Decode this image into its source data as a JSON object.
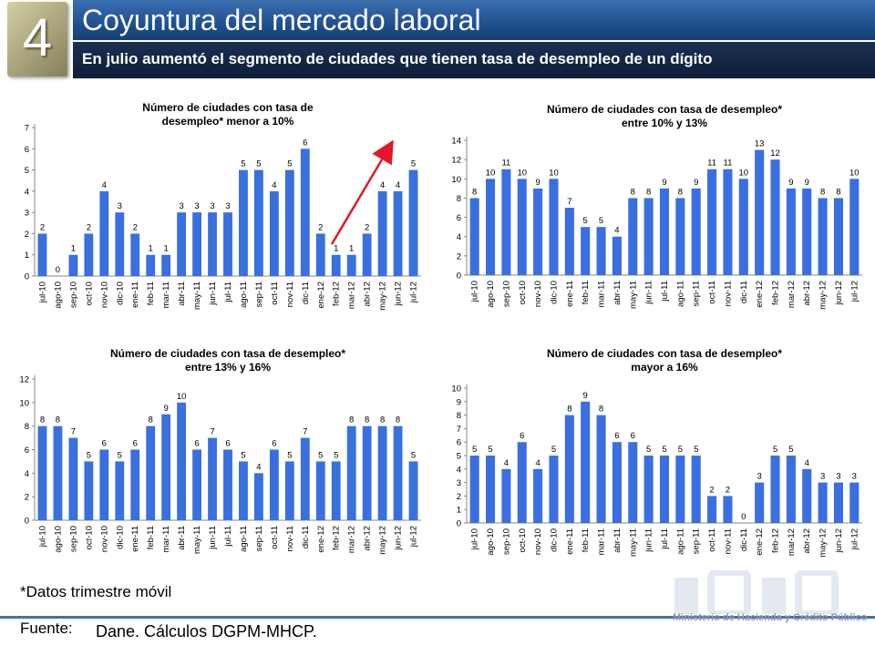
{
  "header": {
    "slide_number": "4",
    "title": "Coyuntura del mercado laboral",
    "subtitle": "En julio aumentó el segmento de ciudades que tienen tasa de desempleo de un dígito"
  },
  "footer": {
    "note": "*Datos trimestre móvil",
    "source_label": "Fuente:",
    "source_text": "Dane. Cálculos DGPM-MHCP.",
    "ministry": "Ministerio de Hacienda y Crédito Público"
  },
  "colors": {
    "bar": "#3a6fe0",
    "arrow": "#e0182a",
    "title_bar": "#20508f"
  },
  "chart_data": [
    {
      "type": "bar",
      "title_lines": [
        "Número de ciudades con tasa de",
        "desempleo* menor a 10%"
      ],
      "categories": [
        "jul-10",
        "ago-10",
        "sep-10",
        "oct-10",
        "nov-10",
        "dic-10",
        "ene-11",
        "feb-11",
        "mar-11",
        "abr-11",
        "may-11",
        "jun-11",
        "jul-11",
        "ago-11",
        "sep-11",
        "oct-11",
        "nov-11",
        "dic-11",
        "ene-12",
        "feb-12",
        "mar-12",
        "abr-12",
        "may-12",
        "jun-12",
        "jul-12"
      ],
      "values": [
        2,
        0,
        1,
        2,
        4,
        3,
        2,
        1,
        1,
        3,
        3,
        3,
        3,
        5,
        5,
        4,
        5,
        6,
        2,
        1,
        1,
        2,
        4,
        4,
        5
      ],
      "ylim": [
        0,
        7
      ],
      "yticks": [
        "0",
        "1",
        "2",
        "3",
        "4",
        "5",
        "6",
        "7"
      ]
    },
    {
      "type": "bar",
      "title_lines": [
        "Número de ciudades con tasa de desempleo*",
        "entre 10% y 13%"
      ],
      "categories": [
        "jul-10",
        "ago-10",
        "sep-10",
        "oct-10",
        "nov-10",
        "dic-10",
        "ene-11",
        "feb-11",
        "mar-11",
        "abr-11",
        "may-11",
        "jun-11",
        "jul-11",
        "ago-11",
        "sep-11",
        "oct-11",
        "nov-11",
        "dic-11",
        "ene-12",
        "feb-12",
        "mar-12",
        "abr-12",
        "may-12",
        "jun-12",
        "jul-12"
      ],
      "values": [
        8,
        10,
        11,
        10,
        9,
        10,
        7,
        5,
        5,
        4,
        8,
        8,
        9,
        8,
        9,
        11,
        11,
        10,
        13,
        12,
        9,
        9,
        8,
        8,
        10
      ],
      "ylim": [
        0,
        14
      ],
      "yticks": [
        "0",
        "2",
        "4",
        "6",
        "8",
        "10",
        "12",
        "14"
      ]
    },
    {
      "type": "bar",
      "title_lines": [
        "Número de ciudades con tasa de desempleo*",
        "entre 13% y 16%"
      ],
      "categories": [
        "jul-10",
        "ago-10",
        "sep-10",
        "oct-10",
        "nov-10",
        "dic-10",
        "ene-11",
        "feb-11",
        "mar-11",
        "abr-11",
        "may-11",
        "jun-11",
        "jul-11",
        "ago-11",
        "sep-11",
        "oct-11",
        "nov-11",
        "dic-11",
        "ene-12",
        "feb-12",
        "mar-12",
        "abr-12",
        "may-12",
        "jun-12",
        "jul-12"
      ],
      "values": [
        8,
        8,
        7,
        5,
        6,
        5,
        6,
        8,
        9,
        10,
        6,
        7,
        6,
        5,
        4,
        6,
        5,
        7,
        5,
        5,
        8,
        8,
        8,
        8,
        5
      ],
      "ylim": [
        0,
        12
      ],
      "yticks": [
        "0",
        "2",
        "4",
        "6",
        "8",
        "10",
        "12"
      ]
    },
    {
      "type": "bar",
      "title_lines": [
        "Número de ciudades con tasa de desempleo*",
        "mayor a 16%"
      ],
      "categories": [
        "jul-10",
        "ago-10",
        "sep-10",
        "oct-10",
        "nov-10",
        "dic-10",
        "ene-11",
        "feb-11",
        "mar-11",
        "abr-11",
        "may-11",
        "jun-11",
        "jul-11",
        "ago-11",
        "sep-11",
        "oct-11",
        "nov-11",
        "dic-11",
        "ene-12",
        "feb-12",
        "mar-12",
        "abr-12",
        "may-12",
        "jun-12",
        "jul-12"
      ],
      "values": [
        5,
        5,
        4,
        6,
        4,
        5,
        8,
        9,
        8,
        6,
        6,
        5,
        5,
        5,
        5,
        2,
        2,
        0,
        3,
        5,
        5,
        4,
        3,
        3,
        3
      ],
      "ylim": [
        0,
        10
      ],
      "yticks": [
        "0",
        "1",
        "2",
        "3",
        "4",
        "5",
        "6",
        "7",
        "8",
        "9",
        "10"
      ]
    }
  ]
}
